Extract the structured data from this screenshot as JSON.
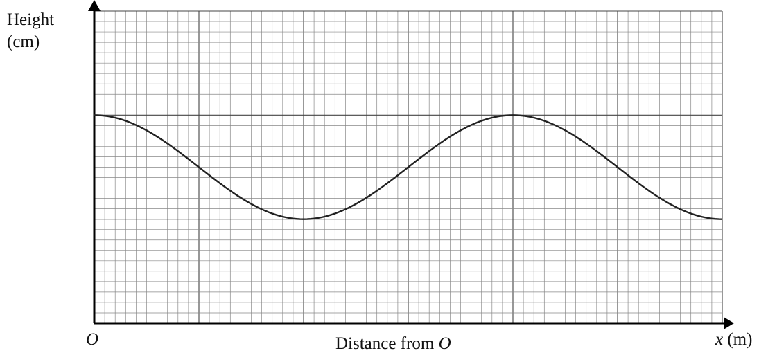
{
  "chart_data": {
    "type": "line",
    "y_axis_label_line1": "Height",
    "y_axis_label_line2": "(cm)",
    "x_axis_title_text": "Distance from ",
    "x_axis_title_var": "O",
    "origin_label": "O",
    "x_axis_var": "x",
    "x_axis_unit": "(m)",
    "grid": true,
    "major_cells": [
      6,
      3
    ],
    "minor_per_major": 10,
    "series": [
      {
        "color": "#222222",
        "x": [
          0,
          1,
          2,
          3,
          4,
          5,
          6
        ],
        "y": [
          1,
          0.5,
          0,
          0.5,
          1,
          0.5,
          0
        ]
      }
    ]
  }
}
